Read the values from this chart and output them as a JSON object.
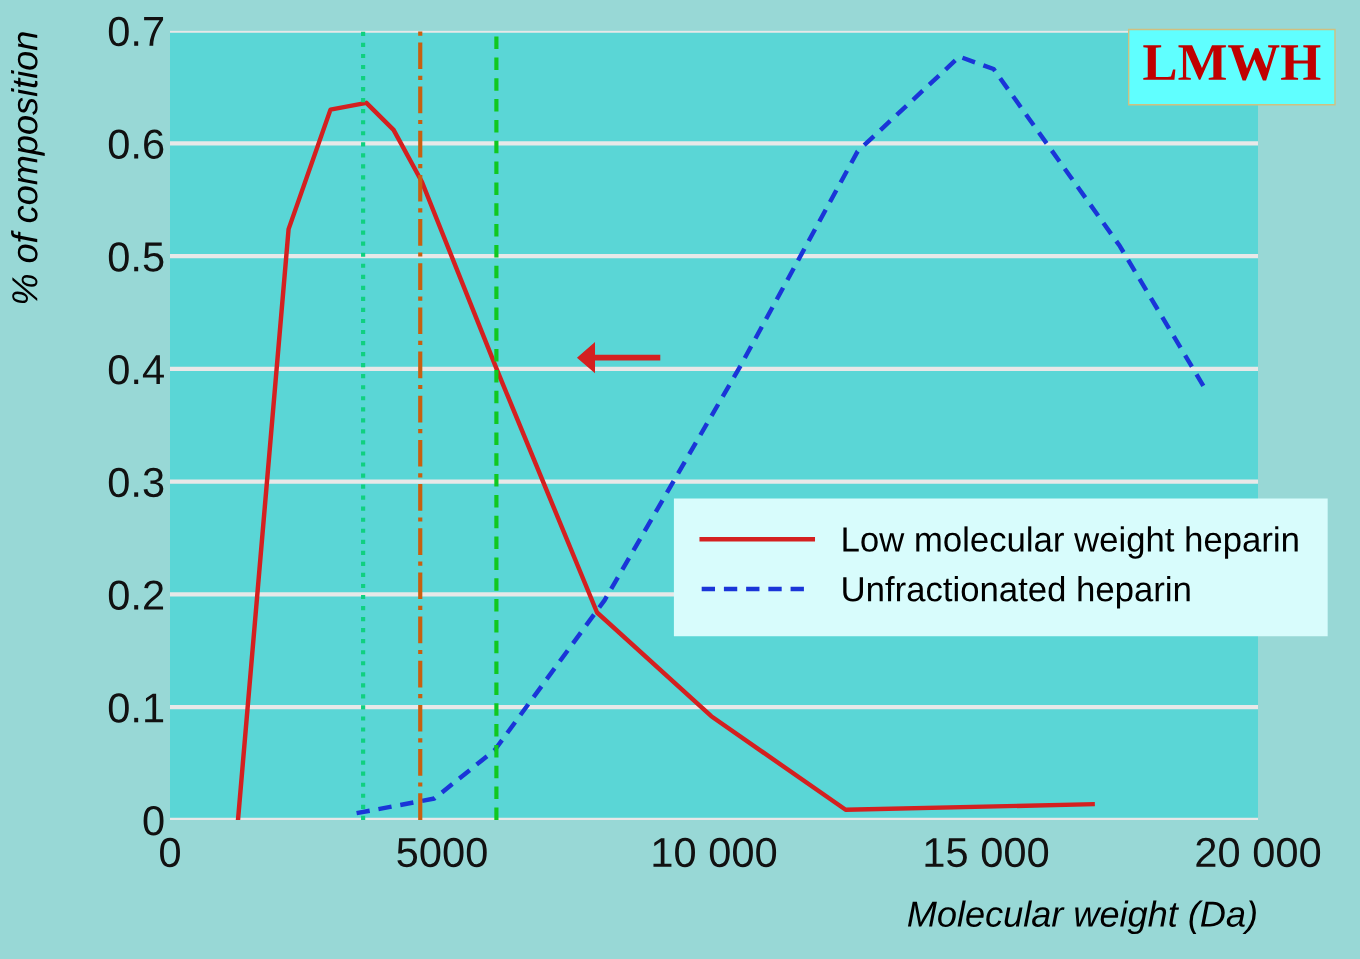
{
  "chart_data": {
    "type": "line",
    "xlabel": "Molecular weight (Da)",
    "ylabel": "% of composition",
    "xlim": [
      0,
      20000
    ],
    "ylim": [
      0,
      0.7
    ],
    "xticks": [
      0,
      5000,
      {
        "value": 10000,
        "label": "10 000"
      },
      {
        "value": 15000,
        "label": "15 000"
      },
      {
        "value": 20000,
        "label": "20 000"
      }
    ],
    "yticks": [
      0,
      0.1,
      0.2,
      0.3,
      0.4,
      0.5,
      0.6,
      0.7
    ],
    "grid": "y",
    "legend": "right",
    "marker": "none",
    "series": [
      {
        "name": "Low molecular weight heparin",
        "color": "#d42020",
        "line_style": "solid",
        "x": [
          1250,
          2180,
          2950,
          3610,
          4110,
          4630,
          6020,
          7850,
          9950,
          12420,
          16960
        ],
        "values": [
          0,
          0.524,
          0.63,
          0.636,
          0.612,
          0.566,
          0.398,
          0.184,
          0.092,
          0.009,
          0.014
        ]
      },
      {
        "name": "Unfractionated heparin",
        "color": "#1a35d8",
        "line_style": "dashed",
        "x": [
          3430,
          4860,
          5970,
          7990,
          10490,
          12640,
          14510,
          15140,
          17460,
          19070
        ],
        "values": [
          0.006,
          0.019,
          0.062,
          0.195,
          0.403,
          0.593,
          0.677,
          0.666,
          0.509,
          0.379
        ]
      }
    ],
    "ref_lines": [
      {
        "axis": "x",
        "value": 3550,
        "label": null,
        "color": "#10d080",
        "line_style": "dotted"
      },
      {
        "axis": "x",
        "value": 4600,
        "label": null,
        "color": "#c86010",
        "line_style": "dashdot"
      },
      {
        "axis": "x",
        "value": 6000,
        "label": null,
        "color": "#10c820",
        "line_style": "dashed"
      }
    ],
    "annotations": [
      "LMWH"
    ]
  }
}
